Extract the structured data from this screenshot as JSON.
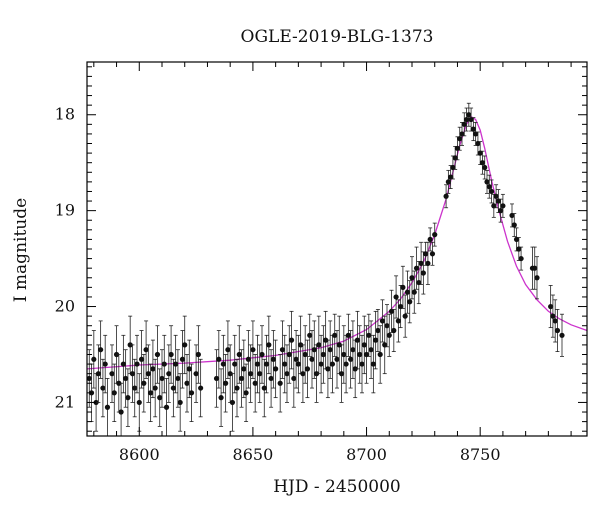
{
  "chart_data": {
    "type": "scatter",
    "title": "OGLE-2019-BLG-1373",
    "xlabel": "HJD - 2450000",
    "ylabel": "I magnitude",
    "xlim": [
      8577,
      8797
    ],
    "ylim": [
      21.35,
      17.45
    ],
    "y_inverted": true,
    "grid": false,
    "legend": "none",
    "x_ticks": [
      8600,
      8650,
      8700,
      8750
    ],
    "x_tick_labels": [
      "8600",
      "8650",
      "8700",
      "8750"
    ],
    "y_ticks": [
      18,
      19,
      20,
      21
    ],
    "y_tick_labels": [
      "18",
      "19",
      "20",
      "21"
    ],
    "colors": {
      "points": "#111111",
      "model": "#cc33cc",
      "frame": "#000000"
    },
    "series": [
      {
        "kind": "observations",
        "x": [
          8578,
          8579,
          8580,
          8581,
          8582,
          8583,
          8584,
          8585,
          8586,
          8588,
          8589,
          8590,
          8591,
          8592,
          8593,
          8594,
          8595,
          8596,
          8597,
          8598,
          8599,
          8600,
          8601,
          8602,
          8603,
          8604,
          8605,
          8606,
          8607,
          8608,
          8609,
          8610,
          8611,
          8612,
          8613,
          8614,
          8615,
          8616,
          8617,
          8618,
          8619,
          8620,
          8621,
          8622,
          8623,
          8625,
          8626,
          8627,
          8634,
          8635,
          8636,
          8637,
          8638,
          8639,
          8640,
          8641,
          8642,
          8643,
          8644,
          8645,
          8646,
          8647,
          8648,
          8649,
          8650,
          8651,
          8652,
          8653,
          8654,
          8655,
          8656,
          8657,
          8658,
          8659,
          8660,
          8662,
          8663,
          8664,
          8665,
          8666,
          8667,
          8668,
          8669,
          8670,
          8671,
          8672,
          8673,
          8674,
          8675,
          8676,
          8677,
          8678,
          8679,
          8680,
          8681,
          8682,
          8683,
          8684,
          8685,
          8686,
          8687,
          8688,
          8689,
          8690,
          8691,
          8692,
          8693,
          8694,
          8695,
          8696,
          8697,
          8698,
          8699,
          8700,
          8701,
          8702,
          8703,
          8704,
          8705,
          8706,
          8707,
          8708,
          8709,
          8710,
          8711,
          8712,
          8713,
          8714,
          8715,
          8716,
          8717,
          8718,
          8719,
          8720,
          8721,
          8722,
          8723,
          8724,
          8725,
          8726,
          8727,
          8728,
          8729,
          8730,
          8735,
          8736,
          8737,
          8738,
          8739,
          8740,
          8741,
          8742,
          8743,
          8744,
          8745,
          8746,
          8747,
          8748,
          8749,
          8750,
          8751,
          8752,
          8753,
          8754,
          8755,
          8756,
          8757,
          8758,
          8759,
          8760,
          8764,
          8765,
          8766,
          8767,
          8768,
          8773,
          8774,
          8775,
          8781,
          8782,
          8783,
          8784,
          8786
        ],
        "y": [
          20.75,
          20.9,
          20.55,
          21.0,
          20.7,
          20.45,
          20.85,
          20.6,
          21.05,
          20.7,
          20.9,
          20.5,
          20.8,
          21.1,
          20.6,
          20.75,
          20.95,
          20.4,
          20.7,
          20.85,
          20.6,
          21.0,
          20.55,
          20.8,
          20.45,
          20.7,
          20.9,
          20.65,
          20.85,
          20.5,
          20.95,
          20.75,
          20.6,
          21.05,
          20.7,
          20.5,
          20.85,
          20.6,
          20.75,
          21.0,
          20.55,
          20.4,
          20.8,
          20.65,
          20.9,
          20.7,
          20.5,
          20.85,
          20.75,
          20.55,
          20.95,
          20.6,
          20.8,
          20.45,
          20.7,
          21.0,
          20.6,
          20.85,
          20.5,
          20.75,
          20.65,
          20.9,
          20.55,
          20.7,
          20.45,
          20.8,
          20.6,
          20.7,
          20.5,
          20.85,
          20.6,
          20.4,
          20.75,
          20.55,
          20.65,
          20.8,
          20.45,
          20.6,
          20.7,
          20.5,
          20.35,
          20.75,
          20.55,
          20.6,
          20.4,
          20.7,
          20.5,
          20.65,
          20.3,
          20.55,
          20.45,
          20.7,
          20.4,
          20.6,
          20.5,
          20.35,
          20.65,
          20.45,
          20.6,
          20.3,
          20.55,
          20.4,
          20.7,
          20.5,
          20.6,
          20.3,
          20.55,
          20.45,
          20.65,
          20.35,
          20.5,
          20.6,
          20.4,
          20.5,
          20.3,
          20.45,
          20.6,
          20.35,
          20.25,
          20.5,
          20.15,
          20.4,
          20.2,
          20.3,
          20.05,
          20.25,
          19.9,
          20.15,
          20.0,
          19.8,
          20.1,
          19.85,
          19.95,
          19.7,
          19.85,
          19.6,
          19.75,
          19.55,
          19.65,
          19.45,
          19.55,
          19.3,
          19.45,
          19.25,
          18.85,
          18.7,
          18.65,
          18.55,
          18.45,
          18.35,
          18.25,
          18.2,
          18.1,
          18.05,
          18.0,
          18.05,
          18.15,
          18.2,
          18.3,
          18.4,
          18.5,
          18.55,
          18.7,
          18.75,
          18.8,
          18.95,
          18.85,
          18.9,
          19.0,
          18.95,
          19.05,
          19.15,
          19.3,
          19.4,
          19.5,
          19.6,
          19.6,
          19.7,
          20.0,
          20.1,
          20.15,
          20.25,
          20.3
        ],
        "error_bars": true
      },
      {
        "kind": "model",
        "x": [
          8577,
          8600,
          8620,
          8640,
          8660,
          8680,
          8690,
          8700,
          8710,
          8715,
          8720,
          8725,
          8730,
          8735,
          8738,
          8741,
          8744,
          8746,
          8748,
          8750,
          8752,
          8755,
          8758,
          8762,
          8766,
          8770,
          8775,
          8780,
          8785,
          8790,
          8797
        ],
        "y": [
          20.65,
          20.61,
          20.59,
          20.56,
          20.51,
          20.43,
          20.36,
          20.24,
          20.05,
          19.92,
          19.75,
          19.54,
          19.25,
          18.88,
          18.6,
          18.32,
          18.1,
          18.02,
          18.05,
          18.16,
          18.35,
          18.68,
          18.98,
          19.32,
          19.58,
          19.77,
          19.93,
          20.05,
          20.13,
          20.19,
          20.25
        ]
      }
    ]
  }
}
